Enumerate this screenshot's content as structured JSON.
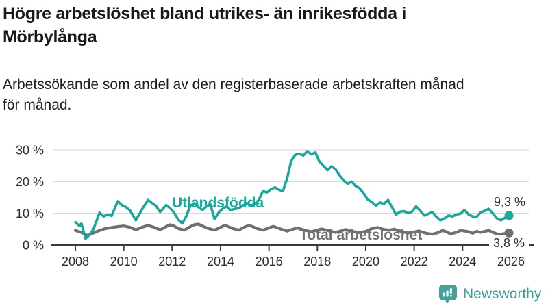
{
  "header": {
    "title_lines": [
      "Högre arbetslöshet bland utrikes- än inrikesfödda i",
      "Mörbylånga"
    ],
    "subtitle_lines": [
      "Arbetssökande som andel av den registerbaserade arbetskraften månad",
      "för månad."
    ]
  },
  "colors": {
    "foreign_born_line": "#1aa69c",
    "total_line": "#707070",
    "grid": "#dadada",
    "axis": "#3b3b3b",
    "tick_text": "#2d2d2d",
    "logo_icon": "#44a29d",
    "logo_text": "#3a9b95"
  },
  "chart_data": {
    "type": "line",
    "unit": "percent",
    "grid": true,
    "x_axis": {
      "ticks": [
        {
          "v": 2008,
          "label": "2008"
        },
        {
          "v": 2010,
          "label": "2010"
        },
        {
          "v": 2012,
          "label": "2012"
        },
        {
          "v": 2014,
          "label": "2014"
        },
        {
          "v": 2016,
          "label": "2016"
        },
        {
          "v": 2018,
          "label": "2018"
        },
        {
          "v": 2020,
          "label": "2020"
        },
        {
          "v": 2022,
          "label": "2022"
        },
        {
          "v": 2024,
          "label": "2024"
        },
        {
          "v": 2026,
          "label": "2026"
        }
      ]
    },
    "y_axis": {
      "range": [
        0,
        32
      ],
      "ticks": [
        {
          "v": 0,
          "label": "0 %"
        },
        {
          "v": 10,
          "label": "10 %"
        },
        {
          "v": 20,
          "label": "20 %"
        },
        {
          "v": 30,
          "label": "30 %"
        }
      ]
    },
    "series": [
      {
        "name": "Utlandsfödda",
        "color": "#1aa69c",
        "end_label": "9,3 %",
        "end_value": 9.3,
        "points": [
          [
            2008.0,
            7.2
          ],
          [
            2008.17,
            6.0
          ],
          [
            2008.25,
            6.8
          ],
          [
            2008.42,
            2.0
          ],
          [
            2008.58,
            3.2
          ],
          [
            2008.75,
            5.0
          ],
          [
            2009.0,
            10.2
          ],
          [
            2009.17,
            9.0
          ],
          [
            2009.33,
            9.6
          ],
          [
            2009.5,
            9.2
          ],
          [
            2009.75,
            13.8
          ],
          [
            2009.92,
            12.6
          ],
          [
            2010.08,
            12.0
          ],
          [
            2010.25,
            11.0
          ],
          [
            2010.5,
            7.8
          ],
          [
            2010.75,
            11.2
          ],
          [
            2011.0,
            14.2
          ],
          [
            2011.17,
            13.2
          ],
          [
            2011.33,
            12.4
          ],
          [
            2011.5,
            10.4
          ],
          [
            2011.75,
            12.6
          ],
          [
            2011.92,
            11.6
          ],
          [
            2012.08,
            10.2
          ],
          [
            2012.25,
            8.0
          ],
          [
            2012.42,
            6.8
          ],
          [
            2012.58,
            9.0
          ],
          [
            2012.75,
            12.4
          ],
          [
            2012.92,
            13.2
          ],
          [
            2013.08,
            12.0
          ],
          [
            2013.25,
            11.0
          ],
          [
            2013.42,
            12.2
          ],
          [
            2013.58,
            12.8
          ],
          [
            2013.75,
            8.2
          ],
          [
            2013.92,
            10.2
          ],
          [
            2014.08,
            11.4
          ],
          [
            2014.25,
            12.2
          ],
          [
            2014.42,
            11.0
          ],
          [
            2014.58,
            11.4
          ],
          [
            2014.75,
            11.6
          ],
          [
            2014.92,
            12.4
          ],
          [
            2015.08,
            13.2
          ],
          [
            2015.25,
            12.4
          ],
          [
            2015.42,
            13.0
          ],
          [
            2015.58,
            14.2
          ],
          [
            2015.75,
            17.0
          ],
          [
            2015.92,
            16.6
          ],
          [
            2016.08,
            17.6
          ],
          [
            2016.25,
            18.2
          ],
          [
            2016.42,
            17.4
          ],
          [
            2016.58,
            17.0
          ],
          [
            2016.75,
            21.0
          ],
          [
            2016.92,
            26.5
          ],
          [
            2017.08,
            28.4
          ],
          [
            2017.25,
            28.8
          ],
          [
            2017.42,
            28.2
          ],
          [
            2017.58,
            29.6
          ],
          [
            2017.75,
            28.6
          ],
          [
            2017.92,
            29.2
          ],
          [
            2018.08,
            26.4
          ],
          [
            2018.25,
            25.0
          ],
          [
            2018.42,
            23.6
          ],
          [
            2018.58,
            24.8
          ],
          [
            2018.75,
            23.9
          ],
          [
            2018.92,
            22.0
          ],
          [
            2019.08,
            20.4
          ],
          [
            2019.25,
            19.3
          ],
          [
            2019.42,
            20.0
          ],
          [
            2019.58,
            18.6
          ],
          [
            2019.75,
            17.9
          ],
          [
            2019.92,
            16.2
          ],
          [
            2020.08,
            14.3
          ],
          [
            2020.25,
            13.6
          ],
          [
            2020.42,
            12.4
          ],
          [
            2020.58,
            13.4
          ],
          [
            2020.75,
            13.0
          ],
          [
            2020.92,
            14.2
          ],
          [
            2021.08,
            12.0
          ],
          [
            2021.25,
            9.6
          ],
          [
            2021.42,
            10.5
          ],
          [
            2021.58,
            10.7
          ],
          [
            2021.75,
            10.0
          ],
          [
            2021.92,
            10.6
          ],
          [
            2022.08,
            12.2
          ],
          [
            2022.25,
            10.8
          ],
          [
            2022.42,
            9.3
          ],
          [
            2022.58,
            9.8
          ],
          [
            2022.75,
            10.4
          ],
          [
            2022.92,
            8.9
          ],
          [
            2023.08,
            7.8
          ],
          [
            2023.25,
            8.4
          ],
          [
            2023.42,
            9.3
          ],
          [
            2023.58,
            9.0
          ],
          [
            2023.75,
            9.6
          ],
          [
            2023.92,
            9.9
          ],
          [
            2024.08,
            11.1
          ],
          [
            2024.25,
            9.6
          ],
          [
            2024.42,
            9.0
          ],
          [
            2024.58,
            8.9
          ],
          [
            2024.75,
            10.3
          ],
          [
            2024.92,
            10.8
          ],
          [
            2025.08,
            11.4
          ],
          [
            2025.25,
            10.0
          ],
          [
            2025.42,
            8.4
          ],
          [
            2025.58,
            7.8
          ],
          [
            2025.75,
            8.6
          ],
          [
            2025.92,
            9.3
          ]
        ]
      },
      {
        "name": "Total arbetslöshet",
        "color": "#707070",
        "end_label": "3,8 %",
        "end_value": 3.8,
        "points": [
          [
            2008.0,
            4.6
          ],
          [
            2008.25,
            4.0
          ],
          [
            2008.5,
            3.0
          ],
          [
            2008.75,
            3.8
          ],
          [
            2009.0,
            4.6
          ],
          [
            2009.25,
            5.2
          ],
          [
            2009.5,
            5.5
          ],
          [
            2009.75,
            5.8
          ],
          [
            2010.0,
            6.0
          ],
          [
            2010.25,
            5.6
          ],
          [
            2010.5,
            4.8
          ],
          [
            2010.75,
            5.6
          ],
          [
            2011.0,
            6.2
          ],
          [
            2011.25,
            5.6
          ],
          [
            2011.5,
            4.8
          ],
          [
            2011.75,
            5.8
          ],
          [
            2011.92,
            6.4
          ],
          [
            2012.08,
            6.0
          ],
          [
            2012.25,
            5.2
          ],
          [
            2012.5,
            4.7
          ],
          [
            2012.75,
            5.8
          ],
          [
            2012.92,
            6.4
          ],
          [
            2013.08,
            6.6
          ],
          [
            2013.25,
            6.0
          ],
          [
            2013.5,
            5.2
          ],
          [
            2013.75,
            4.7
          ],
          [
            2014.0,
            5.6
          ],
          [
            2014.17,
            6.2
          ],
          [
            2014.33,
            5.8
          ],
          [
            2014.5,
            5.2
          ],
          [
            2014.75,
            4.7
          ],
          [
            2015.0,
            5.7
          ],
          [
            2015.17,
            6.2
          ],
          [
            2015.33,
            5.8
          ],
          [
            2015.5,
            5.2
          ],
          [
            2015.75,
            4.7
          ],
          [
            2016.0,
            5.4
          ],
          [
            2016.17,
            5.9
          ],
          [
            2016.33,
            5.5
          ],
          [
            2016.5,
            5.0
          ],
          [
            2016.75,
            4.4
          ],
          [
            2017.0,
            5.0
          ],
          [
            2017.17,
            5.4
          ],
          [
            2017.33,
            5.0
          ],
          [
            2017.5,
            4.6
          ],
          [
            2017.75,
            4.2
          ],
          [
            2018.0,
            4.7
          ],
          [
            2018.17,
            5.1
          ],
          [
            2018.33,
            4.8
          ],
          [
            2018.5,
            4.4
          ],
          [
            2018.75,
            4.0
          ],
          [
            2019.0,
            4.5
          ],
          [
            2019.17,
            4.9
          ],
          [
            2019.33,
            4.5
          ],
          [
            2019.5,
            4.2
          ],
          [
            2019.75,
            3.9
          ],
          [
            2020.0,
            4.3
          ],
          [
            2020.25,
            5.2
          ],
          [
            2020.5,
            5.5
          ],
          [
            2020.75,
            4.9
          ],
          [
            2021.0,
            4.7
          ],
          [
            2021.17,
            5.0
          ],
          [
            2021.33,
            4.6
          ],
          [
            2021.5,
            4.2
          ],
          [
            2021.75,
            3.8
          ],
          [
            2022.0,
            4.1
          ],
          [
            2022.17,
            4.4
          ],
          [
            2022.33,
            4.1
          ],
          [
            2022.5,
            3.7
          ],
          [
            2022.75,
            3.4
          ],
          [
            2023.0,
            3.9
          ],
          [
            2023.17,
            4.6
          ],
          [
            2023.33,
            4.2
          ],
          [
            2023.5,
            3.5
          ],
          [
            2023.75,
            4.0
          ],
          [
            2023.92,
            4.6
          ],
          [
            2024.08,
            4.4
          ],
          [
            2024.25,
            4.2
          ],
          [
            2024.42,
            3.7
          ],
          [
            2024.58,
            4.3
          ],
          [
            2024.75,
            4.0
          ],
          [
            2024.92,
            4.3
          ],
          [
            2025.08,
            4.6
          ],
          [
            2025.25,
            4.0
          ],
          [
            2025.42,
            3.5
          ],
          [
            2025.58,
            3.4
          ],
          [
            2025.75,
            3.6
          ],
          [
            2025.92,
            3.8
          ]
        ]
      }
    ]
  },
  "logo": {
    "text": "Newsworthy",
    "icon": "newsworthy-chart-bubble-icon"
  }
}
